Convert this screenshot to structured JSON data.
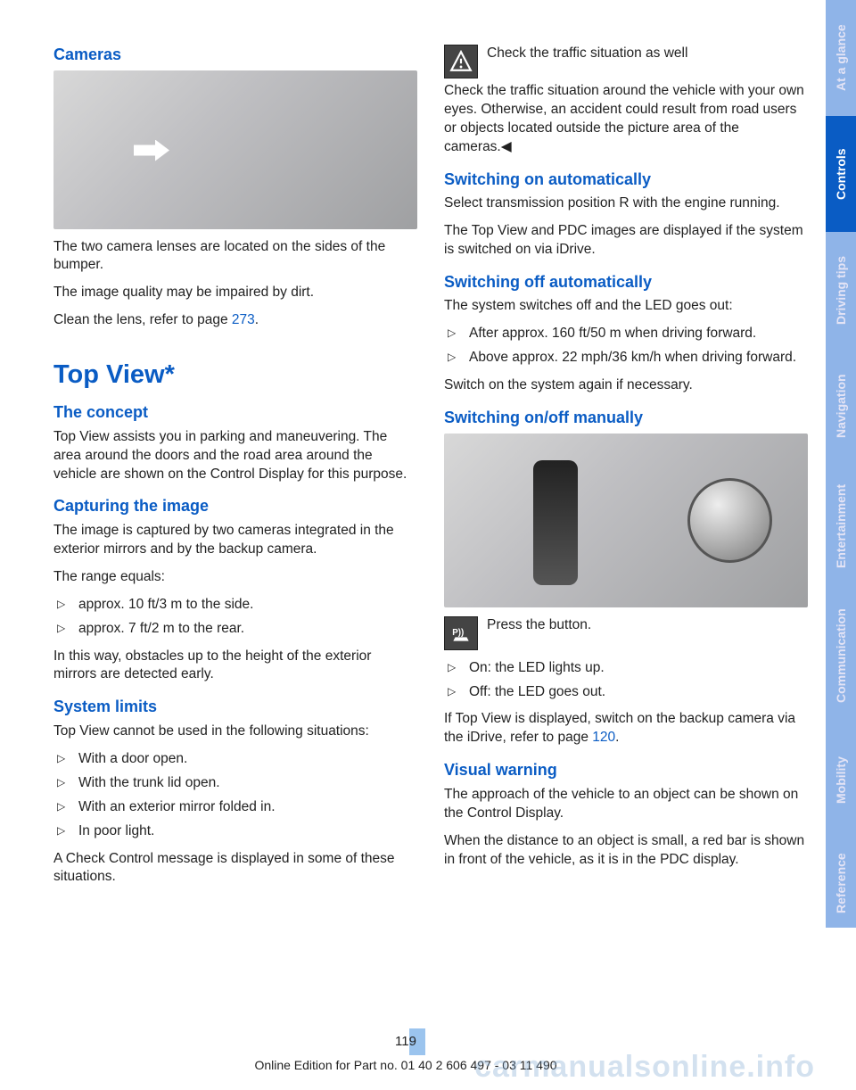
{
  "sidebar": {
    "tabs": [
      {
        "label": "At a glance",
        "bg": "#8fb4e8",
        "dim": true,
        "h": 130
      },
      {
        "label": "Controls",
        "bg": "#0a5cc4",
        "dim": false,
        "h": 130
      },
      {
        "label": "Driving tips",
        "bg": "#8fb4e8",
        "dim": true,
        "h": 130
      },
      {
        "label": "Navigation",
        "bg": "#8fb4e8",
        "dim": true,
        "h": 130
      },
      {
        "label": "Entertainment",
        "bg": "#8fb4e8",
        "dim": true,
        "h": 140
      },
      {
        "label": "Communication",
        "bg": "#8fb4e8",
        "dim": true,
        "h": 150
      },
      {
        "label": "Mobility",
        "bg": "#8fb4e8",
        "dim": true,
        "h": 130
      },
      {
        "label": "Reference",
        "bg": "#8fb4e8",
        "dim": true,
        "h": 100
      }
    ]
  },
  "left": {
    "cameras_h": "Cameras",
    "cameras_p1": "The two camera lenses are located on the sides of the bumper.",
    "cameras_p2": "The image quality may be impaired by dirt.",
    "cameras_p3a": "Clean the lens, refer to page ",
    "cameras_p3_link": "273",
    "cameras_p3b": ".",
    "topview_h": "Top View*",
    "concept_h": "The concept",
    "concept_p": "Top View assists you in parking and maneuver­ing. The area around the doors and the road area around the vehicle are shown on the Control Display for this purpose.",
    "capture_h": "Capturing the image",
    "capture_p1": "The image is captured by two cameras integrated in the exterior mirrors and by the backup camera.",
    "capture_p2": "The range equals:",
    "capture_li1": "approx. 10 ft/3 m to the side.",
    "capture_li2": "approx. 7 ft/2 m to the rear.",
    "capture_p3": "In this way, obstacles up to the height of the ex­terior mirrors are detected early.",
    "limits_h": "System limits",
    "limits_p1": "Top View cannot be used in the following situa­tions:",
    "limits_li1": "With a door open.",
    "limits_li2": "With the trunk lid open.",
    "limits_li3": "With an exterior mirror folded in.",
    "limits_li4": "In poor light.",
    "limits_p2": "A Check Control message is displayed in some of these situations."
  },
  "right": {
    "warn_line1": "Check the traffic situation as well",
    "warn_p": "Check the traffic situation around the ve­hicle with your own eyes. Otherwise, an accident could result from road users or objects located outside the picture area of the cameras.◀",
    "auto_on_h": "Switching on automatically",
    "auto_on_p1": "Select transmission position R with the engine running.",
    "auto_on_p2": "The Top View and PDC images are displayed if the system is switched on via iDrive.",
    "auto_off_h": "Switching off automatically",
    "auto_off_p1": "The system switches off and the LED goes out:",
    "auto_off_li1": "After approx. 160 ft/50 m when driving for­ward.",
    "auto_off_li2": "Above approx. 22 mph/36 km/h when driv­ing forward.",
    "auto_off_p2": "Switch on the system again if necessary.",
    "manual_h": "Switching on/off manually",
    "press_btn": "Press the button.",
    "manual_li1": "On: the LED lights up.",
    "manual_li2": "Off: the LED goes out.",
    "manual_p_a": "If Top View is displayed, switch on the backup camera via the iDrive, refer to page ",
    "manual_p_link": "120",
    "manual_p_b": ".",
    "visual_h": "Visual warning",
    "visual_p1": "The approach of the vehicle to an object can be shown on the Control Display.",
    "visual_p2": "When the distance to an object is small, a red bar is shown in front of the vehicle, as it is in the PDC display."
  },
  "footer": {
    "page_num": "119",
    "line": "Online Edition for Part no. 01 40 2 606 497 - 03 11 490",
    "watermark": "carmanualsonline.info"
  },
  "colors": {
    "heading": "#0a5cc4",
    "tab_active": "#0a5cc4",
    "tab_inactive": "#8fb4e8"
  }
}
